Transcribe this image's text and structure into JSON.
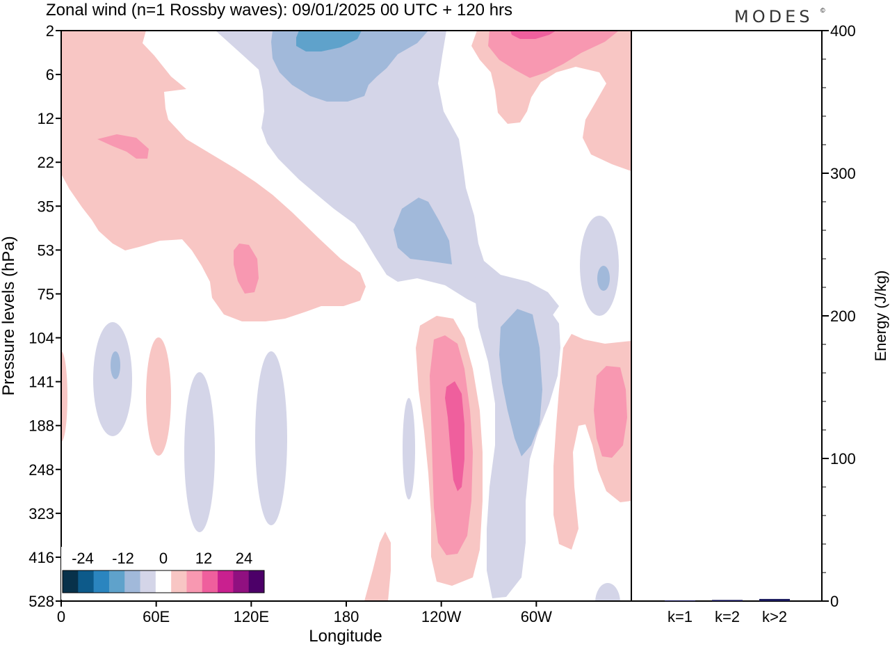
{
  "title": "Zonal wind (n=1 Rossby waves):  09/01/2025  00 UTC  + 120 hrs",
  "brand": "MODES",
  "brand_mark": "©",
  "colors": {
    "palette": [
      "#08314a",
      "#0d5a8a",
      "#2b85bf",
      "#5fa2cb",
      "#a1b9da",
      "#d4d5e8",
      "#ffffff",
      "#f8c6c4",
      "#f898b1",
      "#ef5f9d",
      "#c9208f",
      "#901080",
      "#4c0068"
    ],
    "frame": "#000000",
    "energy_bar": "#1a1a5e"
  },
  "chart_data": [
    {
      "type": "heatmap",
      "subtype": "filled-contour",
      "title": "Zonal wind (n=1 Rossby waves):  09/01/2025  00 UTC  + 120 hrs",
      "xlabel": "Longitude",
      "ylabel": "Pressure levels (hPa)",
      "x_tick_labels": [
        "0",
        "60E",
        "120E",
        "180",
        "120W",
        "60W"
      ],
      "x_range_deg": [
        0,
        360
      ],
      "y_levels": [
        "2",
        "6",
        "12",
        "22",
        "35",
        "53",
        "75",
        "104",
        "141",
        "188",
        "248",
        "323",
        "416",
        "528"
      ],
      "y_axis": "reversed",
      "colorbar": {
        "labels": [
          "-24",
          "-12",
          "0",
          "12",
          "24"
        ],
        "range": [
          -30,
          30
        ],
        "n_bins": 13
      },
      "contour_regions": [
        {
          "sign": "positive",
          "level": "weak",
          "lon_range": [
            0,
            190
          ],
          "p_range": [
            2,
            100
          ],
          "desc": "broad positive band tilting upward to the west"
        },
        {
          "sign": "positive",
          "level": "moderate",
          "lon_range": [
            22,
            55
          ],
          "p_range": [
            18,
            22
          ]
        },
        {
          "sign": "positive",
          "level": "moderate",
          "lon_range": [
            110,
            125
          ],
          "p_range": [
            50,
            90
          ]
        },
        {
          "sign": "negative",
          "level": "weak",
          "lon_range": [
            100,
            260
          ],
          "p_range": [
            2,
            104
          ],
          "desc": "negative band tilting from upper-left to middle"
        },
        {
          "sign": "negative",
          "level": "moderate",
          "lon_range": [
            130,
            240
          ],
          "p_range": [
            2,
            12
          ]
        },
        {
          "sign": "negative",
          "level": "strong",
          "lon_range": [
            148,
            185
          ],
          "p_range": [
            2,
            5
          ]
        },
        {
          "sign": "negative",
          "level": "moderate",
          "lon_range": [
            210,
            248
          ],
          "p_range": [
            30,
            75
          ]
        },
        {
          "sign": "positive",
          "level": "weak",
          "lon_range": [
            260,
            360
          ],
          "p_range": [
            2,
            22
          ]
        },
        {
          "sign": "positive",
          "level": "moderate",
          "lon_range": [
            270,
            350
          ],
          "p_range": [
            2,
            8
          ]
        },
        {
          "sign": "positive",
          "level": "strong",
          "lon_range": [
            285,
            315
          ],
          "p_range": [
            2,
            3
          ]
        },
        {
          "sign": "negative",
          "level": "weak",
          "lon_range": [
            320,
            352
          ],
          "p_range": [
            35,
            110
          ]
        },
        {
          "sign": "negative",
          "level": "moderate",
          "lon_range": [
            340,
            347
          ],
          "p_range": [
            70,
            90
          ]
        },
        {
          "sign": "negative",
          "level": "weak",
          "lon_range": [
            20,
            45
          ],
          "p_range": [
            100,
            190
          ]
        },
        {
          "sign": "negative",
          "level": "moderate",
          "lon_range": [
            30,
            37
          ],
          "p_range": [
            120,
            150
          ]
        },
        {
          "sign": "positive",
          "level": "weak",
          "lon_range": [
            55,
            70
          ],
          "p_range": [
            110,
            250
          ]
        },
        {
          "sign": "negative",
          "level": "weak",
          "lon_range": [
            78,
            98
          ],
          "p_range": [
            140,
            350
          ]
        },
        {
          "sign": "negative",
          "level": "weak",
          "lon_range": [
            122,
            142
          ],
          "p_range": [
            115,
            350
          ]
        },
        {
          "sign": "positive",
          "level": "weak",
          "lon_range": [
            0,
            4
          ],
          "p_range": [
            120,
            190
          ]
        },
        {
          "sign": "negative",
          "level": "weak",
          "lon_range": [
            220,
            228
          ],
          "p_range": [
            185,
            300
          ]
        },
        {
          "sign": "positive",
          "level": "weak",
          "lon_range": [
            225,
            265
          ],
          "p_range": [
            100,
            460
          ]
        },
        {
          "sign": "positive",
          "level": "moderate",
          "lon_range": [
            233,
            258
          ],
          "p_range": [
            120,
            400
          ]
        },
        {
          "sign": "positive",
          "level": "strong",
          "lon_range": [
            243,
            257
          ],
          "p_range": [
            150,
            300
          ]
        },
        {
          "sign": "negative",
          "level": "weak",
          "lon_range": [
            270,
            305
          ],
          "p_range": [
            100,
            525
          ]
        },
        {
          "sign": "negative",
          "level": "moderate",
          "lon_range": [
            278,
            300
          ],
          "p_range": [
            104,
            270
          ]
        },
        {
          "sign": "positive",
          "level": "weak",
          "lon_range": [
            310,
            360
          ],
          "p_range": [
            104,
            416
          ]
        },
        {
          "sign": "positive",
          "level": "moderate",
          "lon_range": [
            338,
            357
          ],
          "p_range": [
            128,
            260
          ]
        },
        {
          "sign": "positive",
          "level": "weak",
          "lon_range": [
            190,
            208
          ],
          "p_range": [
            400,
            528
          ]
        },
        {
          "sign": "negative",
          "level": "weak",
          "lon_range": [
            337,
            353
          ],
          "p_range": [
            500,
            528
          ]
        }
      ]
    },
    {
      "type": "bar",
      "ylabel": "Energy (J/kg)",
      "y_ticks": [
        "0",
        "100",
        "200",
        "300",
        "400"
      ],
      "ylim": [
        0,
        400
      ],
      "categories": [
        "k=1",
        "k=2",
        "k>2"
      ],
      "values": [
        0.3,
        0.8,
        1.5
      ]
    }
  ]
}
